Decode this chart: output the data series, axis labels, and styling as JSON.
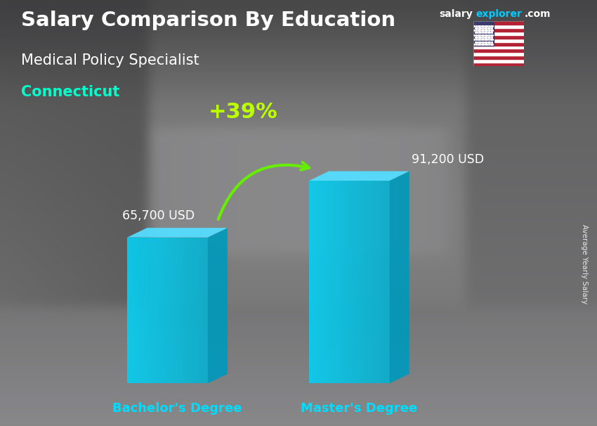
{
  "title_main": "Salary Comparison By Education",
  "subtitle": "Medical Policy Specialist",
  "location": "Connecticut",
  "categories": [
    "Bachelor's Degree",
    "Master's Degree"
  ],
  "values": [
    65700,
    91200
  ],
  "value_labels": [
    "65,700 USD",
    "91,200 USD"
  ],
  "pct_change": "+39%",
  "bar_front_color": "#00C8EE",
  "bar_side_color": "#0099BB",
  "bar_top_color": "#66DDFF",
  "xlabel_color": "#00DDFF",
  "location_color": "#00FFCC",
  "pct_color": "#BBFF00",
  "arrow_color": "#66EE00",
  "value_color": "#FFFFFF",
  "ylabel_text": "Average Yearly Salary",
  "salaryexplorer_white": "#FFFFFF",
  "salaryexplorer_cyan": "#00CCFF",
  "bg_dark": "#3a3a3a"
}
